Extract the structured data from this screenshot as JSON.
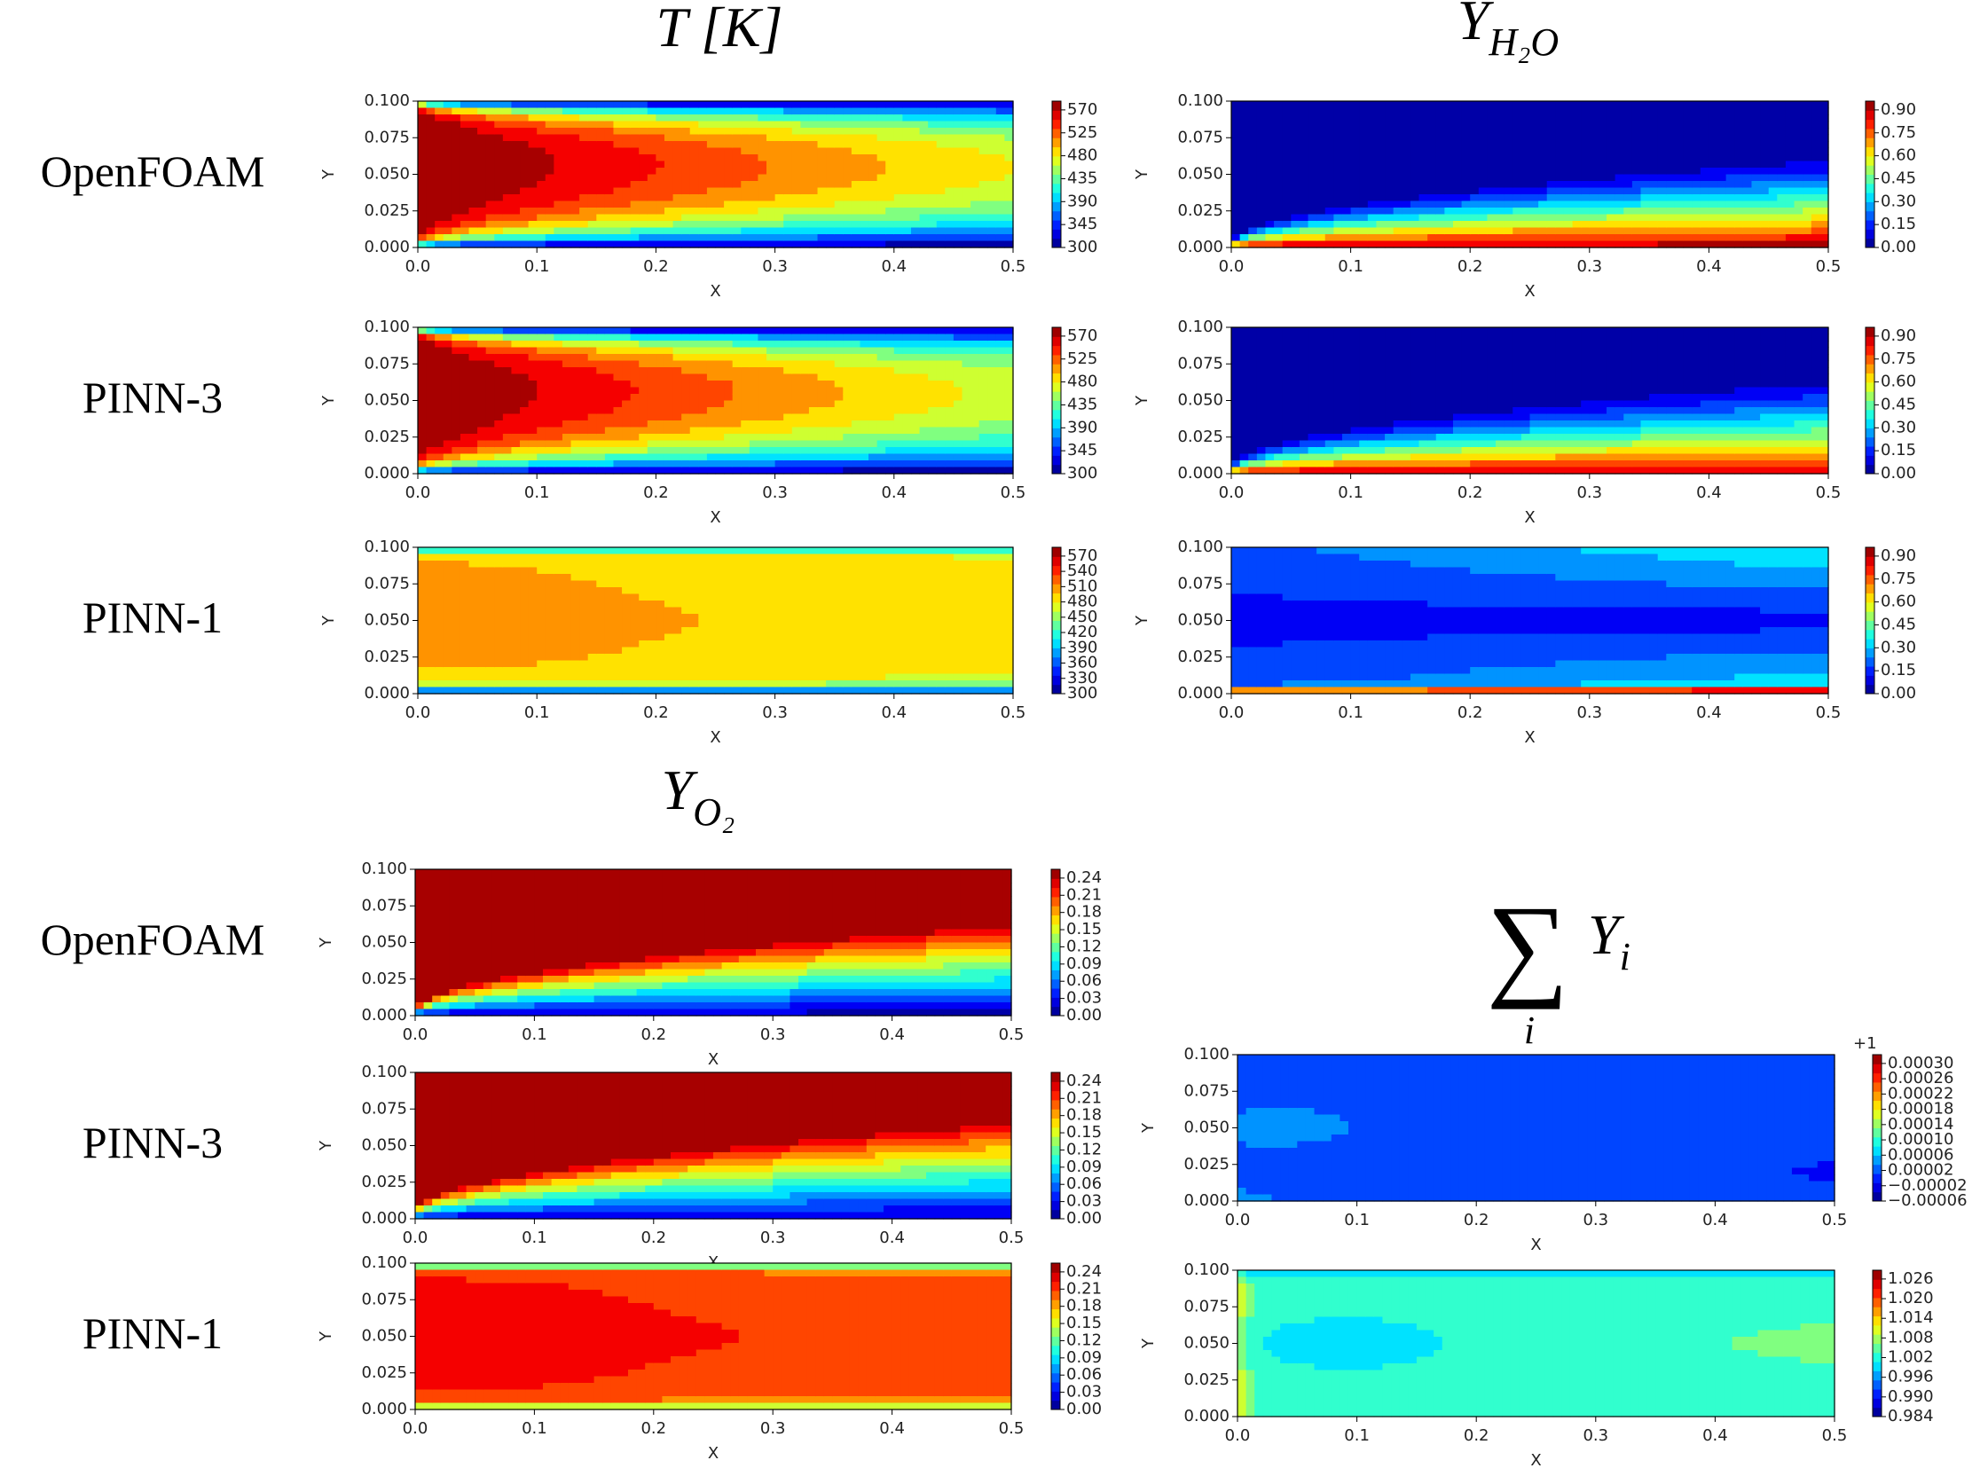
{
  "titles": {
    "temperature": "T [K]",
    "h2o": {
      "main": "Y",
      "sub": "H₂O"
    },
    "o2": {
      "main": "Y",
      "sub": "O₂"
    },
    "sum": {
      "symbol": "∑",
      "main": "Y",
      "sub": "i",
      "under": "i"
    }
  },
  "row_labels": [
    "OpenFOAM",
    "PINN-3",
    "PINN-1"
  ],
  "axes": {
    "xlabel": "X",
    "ylabel": "Y",
    "xticks": [
      "0.0",
      "0.1",
      "0.2",
      "0.3",
      "0.4",
      "0.5"
    ],
    "yticks": [
      "0.000",
      "0.025",
      "0.050",
      "0.075",
      "0.100"
    ]
  },
  "colorbars": {
    "t": [
      "570",
      "525",
      "480",
      "435",
      "390",
      "345",
      "300"
    ],
    "t_pinn1": [
      "570",
      "540",
      "510",
      "480",
      "450",
      "420",
      "390",
      "360",
      "330",
      "300"
    ],
    "h2o": [
      "0.90",
      "0.75",
      "0.60",
      "0.45",
      "0.30",
      "0.15",
      "0.00"
    ],
    "o2": [
      "0.24",
      "0.21",
      "0.18",
      "0.15",
      "0.12",
      "0.09",
      "0.06",
      "0.03",
      "0.00"
    ],
    "sum_pinn3": {
      "offset": "+1",
      "ticks": [
        "0.00030",
        "0.00026",
        "0.00022",
        "0.00018",
        "0.00014",
        "0.00010",
        "0.00006",
        "0.00002",
        "−0.00002",
        "−0.00006"
      ]
    },
    "sum_pinn1": [
      "1.026",
      "1.020",
      "1.014",
      "1.008",
      "1.002",
      "0.996",
      "0.990",
      "0.984"
    ]
  }
}
